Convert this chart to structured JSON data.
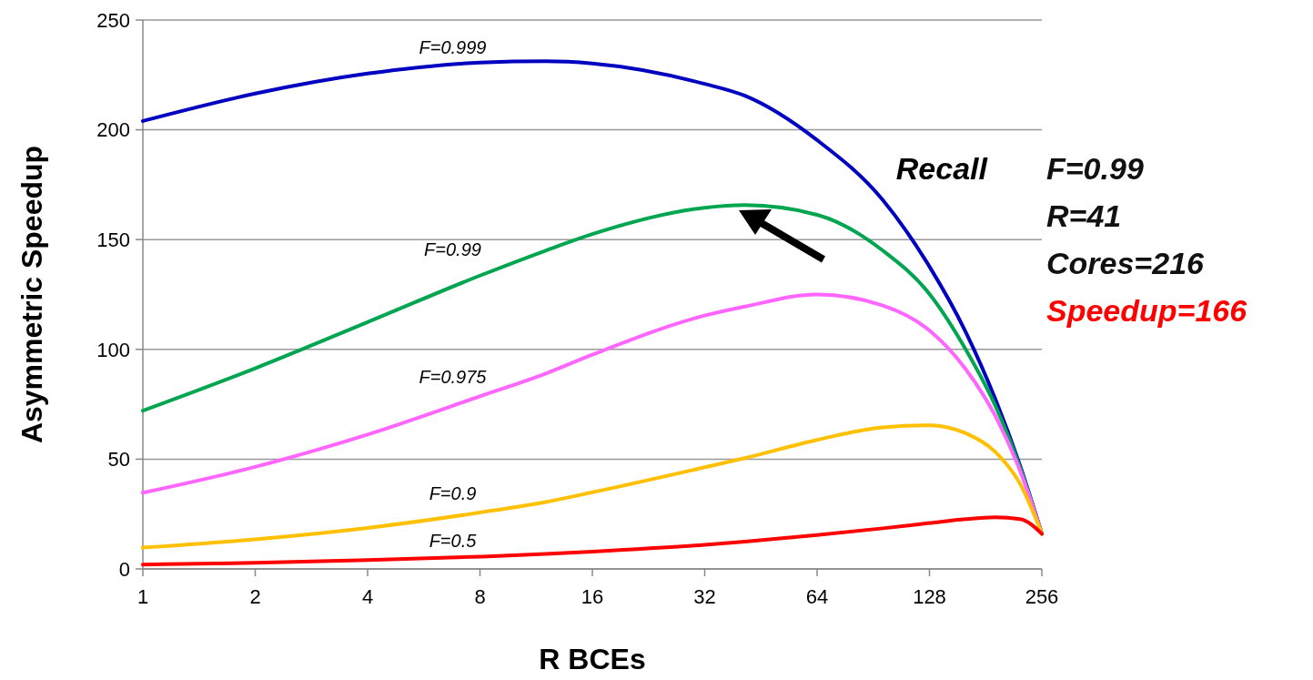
{
  "chart_data": {
    "type": "line",
    "xlabel": "R BCEs",
    "ylabel": "Asymmetric Speedup",
    "log": "x",
    "xlim": [
      1,
      256
    ],
    "xticks": [
      1,
      2,
      4,
      8,
      16,
      32,
      64,
      128,
      256
    ],
    "ylim": [
      0,
      250
    ],
    "yticks": [
      0,
      50,
      100,
      150,
      200,
      250
    ],
    "grid": "y",
    "legend": false,
    "marker": "none",
    "line_style": "solid",
    "x": [
      1,
      2,
      4,
      8,
      12,
      16,
      32,
      41,
      64,
      96,
      128,
      160,
      192,
      224,
      256
    ],
    "series": [
      {
        "name": "F=0.999",
        "color": "#0000c0",
        "values": [
          204,
          216.5,
          225.6,
          230.6,
          231.2,
          230.2,
          220.9,
          215.5,
          195.3,
          168,
          137.7,
          108,
          77.5,
          46.9,
          16
        ]
      },
      {
        "name": "F=0.99",
        "color": "#00a550",
        "values": [
          72.1,
          91.4,
          112.4,
          133.6,
          145,
          152.5,
          164.5,
          165.7,
          161.3,
          145,
          125.2,
          100,
          74.4,
          46,
          16
        ]
      },
      {
        "name": "F=0.975",
        "color": "#ff66ff",
        "values": [
          34.7,
          46.5,
          61.2,
          78.6,
          89,
          97.6,
          115.4,
          119.5,
          125,
          120,
          108.6,
          91,
          69.8,
          44.6,
          16
        ]
      },
      {
        "name": "F=0.9",
        "color": "#ffc000",
        "values": [
          9.7,
          13.5,
          18.7,
          25.7,
          30.5,
          34.9,
          46.3,
          50.5,
          58.8,
          64.5,
          65.4,
          61.8,
          53.3,
          38.7,
          16
        ]
      },
      {
        "name": "F=0.5",
        "color": "#ff0000",
        "values": [
          2,
          2.8,
          4,
          5.6,
          6.8,
          7.9,
          11,
          12.4,
          15.4,
          18.5,
          20.9,
          22.7,
          23.5,
          22.7,
          16
        ]
      }
    ],
    "annotations": [
      "Recall",
      "F=0.99",
      "R=41",
      "Cores=216",
      "Speedup=166"
    ]
  }
}
